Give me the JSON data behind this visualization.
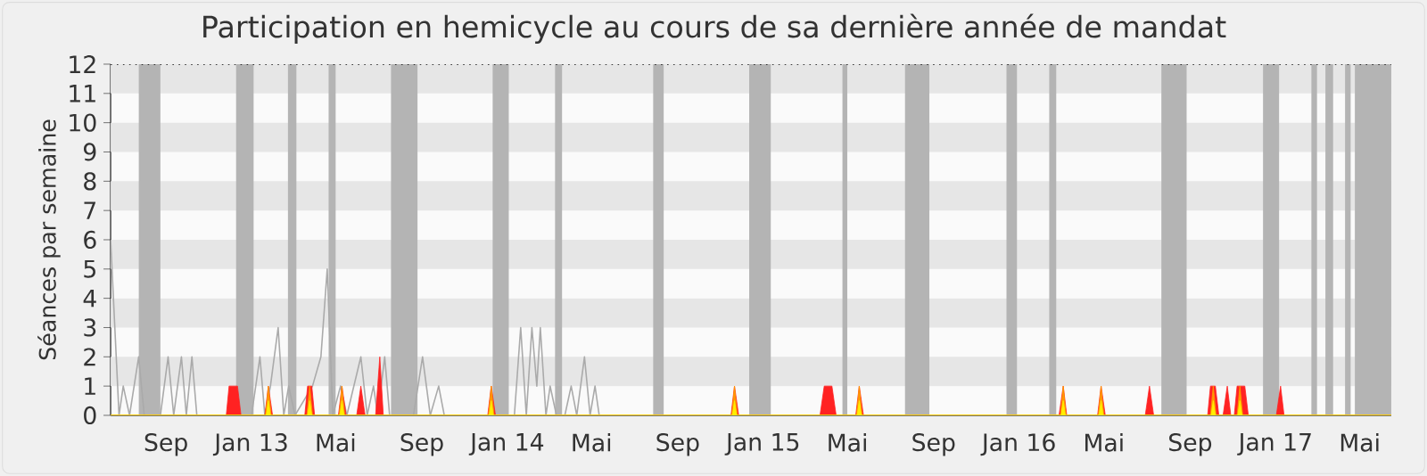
{
  "chart_data": {
    "type": "line",
    "title": "Participation en hemicycle au cours de sa dernière année de mandat",
    "ylabel": "Séances par semaine",
    "xlim": [
      "2012-06-14",
      "2017-06-15"
    ],
    "ylim": [
      0,
      12
    ],
    "xticks": [
      {
        "value": "2012-09-01",
        "label": "Sep"
      },
      {
        "value": "2013-01-01",
        "label": "Jan 13"
      },
      {
        "value": "2013-05-01",
        "label": "Mai"
      },
      {
        "value": "2013-09-01",
        "label": "Sep"
      },
      {
        "value": "2014-01-01",
        "label": "Jan 14"
      },
      {
        "value": "2014-05-01",
        "label": "Mai"
      },
      {
        "value": "2014-09-01",
        "label": "Sep"
      },
      {
        "value": "2015-01-01",
        "label": "Jan 15"
      },
      {
        "value": "2015-05-01",
        "label": "Mai"
      },
      {
        "value": "2015-09-01",
        "label": "Sep"
      },
      {
        "value": "2016-01-01",
        "label": "Jan 16"
      },
      {
        "value": "2016-05-01",
        "label": "Mai"
      },
      {
        "value": "2016-09-01",
        "label": "Sep"
      },
      {
        "value": "2017-01-01",
        "label": "Jan 17"
      },
      {
        "value": "2017-05-01",
        "label": "Mai"
      }
    ],
    "yticks": [
      0,
      1,
      2,
      3,
      4,
      5,
      6,
      7,
      8,
      9,
      10,
      11,
      12
    ],
    "bands": [
      {
        "axis": "y",
        "from": 1,
        "to": 2,
        "color": "#e6e6e6"
      },
      {
        "axis": "y",
        "from": 3,
        "to": 4,
        "color": "#e6e6e6"
      },
      {
        "axis": "y",
        "from": 5,
        "to": 6,
        "color": "#e6e6e6"
      },
      {
        "axis": "y",
        "from": 7,
        "to": 8,
        "color": "#e6e6e6"
      },
      {
        "axis": "y",
        "from": 9,
        "to": 10,
        "color": "#e6e6e6"
      },
      {
        "axis": "y",
        "from": 11,
        "to": 12,
        "color": "#e6e6e6"
      },
      {
        "axis": "x",
        "from": "2012-07-24",
        "to": "2012-08-24",
        "color": "#b4b4b4"
      },
      {
        "axis": "x",
        "from": "2012-12-10",
        "to": "2013-01-04",
        "color": "#b4b4b4"
      },
      {
        "axis": "x",
        "from": "2013-02-22",
        "to": "2013-03-06",
        "color": "#b4b4b4"
      },
      {
        "axis": "x",
        "from": "2013-04-21",
        "to": "2013-05-01",
        "color": "#b4b4b4"
      },
      {
        "axis": "x",
        "from": "2013-07-19",
        "to": "2013-08-26",
        "color": "#b4b4b4"
      },
      {
        "axis": "x",
        "from": "2013-12-11",
        "to": "2014-01-03",
        "color": "#b4b4b4"
      },
      {
        "axis": "x",
        "from": "2014-03-10",
        "to": "2014-03-20",
        "color": "#b4b4b4"
      },
      {
        "axis": "x",
        "from": "2014-07-28",
        "to": "2014-08-12",
        "color": "#b4b4b4"
      },
      {
        "axis": "x",
        "from": "2014-12-12",
        "to": "2015-01-12",
        "color": "#b4b4b4"
      },
      {
        "axis": "x",
        "from": "2015-04-24",
        "to": "2015-05-01",
        "color": "#b4b4b4"
      },
      {
        "axis": "x",
        "from": "2015-07-22",
        "to": "2015-08-26",
        "color": "#b4b4b4"
      },
      {
        "axis": "x",
        "from": "2015-12-14",
        "to": "2015-12-29",
        "color": "#b4b4b4"
      },
      {
        "axis": "x",
        "from": "2016-02-13",
        "to": "2016-02-23",
        "color": "#b4b4b4"
      },
      {
        "axis": "x",
        "from": "2016-07-22",
        "to": "2016-08-27",
        "color": "#b4b4b4"
      },
      {
        "axis": "x",
        "from": "2016-12-14",
        "to": "2017-01-06",
        "color": "#b4b4b4"
      },
      {
        "axis": "x",
        "from": "2017-02-21",
        "to": "2017-03-01",
        "color": "#b4b4b4"
      },
      {
        "axis": "x",
        "from": "2017-03-13",
        "to": "2017-03-24",
        "color": "#b4b4b4"
      },
      {
        "axis": "x",
        "from": "2017-04-10",
        "to": "2017-04-18",
        "color": "#b4b4b4"
      },
      {
        "axis": "x",
        "from": "2017-04-24",
        "to": "2017-06-15",
        "color": "#b4b4b4"
      }
    ],
    "ref_lines": [
      {
        "axis": "y",
        "value": 12,
        "color": "#000000",
        "line_style": "dotted"
      }
    ],
    "series": [
      {
        "color": "#aaaaaa",
        "x": [
          "2012-06-14",
          "2012-06-26",
          "2012-07-02",
          "2012-07-11",
          "2012-07-24",
          "2012-08-01",
          "2012-08-24",
          "2012-09-04",
          "2012-09-12",
          "2012-09-23",
          "2012-09-30",
          "2012-10-08",
          "2012-10-15",
          "2013-01-01",
          "2013-01-13",
          "2013-01-20",
          "2013-01-28",
          "2013-02-08",
          "2013-02-16",
          "2013-02-23",
          "2013-03-04",
          "2013-03-29",
          "2013-04-10",
          "2013-04-19",
          "2013-04-27",
          "2013-05-08",
          "2013-05-17",
          "2013-05-27",
          "2013-06-06",
          "2013-06-15",
          "2013-06-24",
          "2013-06-30",
          "2013-07-10",
          "2013-07-17",
          "2013-08-20",
          "2013-09-02",
          "2013-09-13",
          "2013-09-25",
          "2013-10-03",
          "2014-01-11",
          "2014-01-20",
          "2014-01-28",
          "2014-02-05",
          "2014-02-12",
          "2014-02-17",
          "2014-02-25",
          "2014-03-03",
          "2014-03-12",
          "2014-03-24",
          "2014-04-02",
          "2014-04-10",
          "2014-04-21",
          "2014-04-29",
          "2014-05-06",
          "2014-05-12",
          "2017-06-15"
        ],
        "values": [
          6,
          0,
          1,
          0,
          2,
          0,
          0,
          2,
          0,
          2,
          0,
          2,
          0,
          0,
          2,
          0,
          1,
          3,
          0,
          1,
          0,
          1,
          2,
          5,
          0,
          1,
          0,
          1,
          2,
          0,
          1,
          0,
          2,
          0,
          0,
          2,
          0,
          1,
          0,
          0,
          3,
          0,
          3,
          1,
          3,
          0,
          1,
          0,
          0,
          1,
          0,
          2,
          0,
          1,
          0,
          0
        ]
      },
      {
        "type": "area",
        "color": "#ff2222",
        "x": [
          "2012-06-14",
          "2012-11-26",
          "2012-11-30",
          "2012-12-12",
          "2012-12-17",
          "2013-01-20",
          "2013-01-25",
          "2013-01-31",
          "2013-03-18",
          "2013-03-22",
          "2013-03-28",
          "2013-04-01",
          "2013-05-05",
          "2013-05-10",
          "2013-05-16",
          "2013-05-31",
          "2013-06-06",
          "2013-06-12",
          "2013-06-27",
          "2013-07-03",
          "2013-07-08",
          "2013-12-04",
          "2013-12-09",
          "2013-12-15",
          "2014-11-16",
          "2014-11-21",
          "2014-11-27",
          "2015-03-23",
          "2015-03-29",
          "2015-04-09",
          "2015-04-15",
          "2015-05-13",
          "2015-05-18",
          "2015-05-24",
          "2016-02-27",
          "2016-03-04",
          "2016-03-09",
          "2016-04-22",
          "2016-04-27",
          "2016-05-03",
          "2016-06-29",
          "2016-07-05",
          "2016-07-11",
          "2016-09-26",
          "2016-09-30",
          "2016-10-07",
          "2016-10-12",
          "2016-10-18",
          "2016-10-24",
          "2016-10-29",
          "2016-11-03",
          "2016-11-07",
          "2016-11-18",
          "2016-11-23",
          "2017-01-02",
          "2017-01-08",
          "2017-01-13",
          "2017-06-15"
        ],
        "values": [
          0,
          0,
          1,
          1,
          0,
          0,
          1,
          0,
          0,
          1,
          1,
          0,
          0,
          1,
          0,
          0,
          1,
          0,
          0,
          2,
          0,
          0,
          1,
          0,
          0,
          1,
          0,
          0,
          1,
          1,
          0,
          0,
          1,
          0,
          0,
          1,
          0,
          0,
          1,
          0,
          0,
          1,
          0,
          0,
          1,
          1,
          0,
          0,
          1,
          0,
          0,
          1,
          1,
          0,
          0,
          1,
          0,
          0
        ]
      },
      {
        "type": "area",
        "color": "#ff9900",
        "x": [
          "2012-06-14",
          "2013-01-21",
          "2013-01-25",
          "2013-01-29",
          "2013-03-21",
          "2013-03-25",
          "2013-03-29",
          "2013-05-06",
          "2013-05-10",
          "2013-05-14",
          "2013-12-05",
          "2013-12-09",
          "2013-12-13",
          "2014-11-17",
          "2014-11-21",
          "2014-11-25",
          "2015-05-14",
          "2015-05-18",
          "2015-05-22",
          "2016-02-29",
          "2016-03-04",
          "2016-03-08",
          "2016-04-23",
          "2016-04-27",
          "2016-05-01",
          "2016-09-30",
          "2016-10-04",
          "2016-10-08",
          "2016-11-07",
          "2016-11-11",
          "2016-11-15",
          "2017-06-15"
        ],
        "values": [
          0,
          0,
          1,
          0,
          0,
          1,
          0,
          0,
          1,
          0,
          0,
          1,
          0,
          0,
          1,
          0,
          0,
          1,
          0,
          0,
          1,
          0,
          0,
          1,
          0,
          0,
          1,
          0,
          0,
          1,
          0,
          0
        ]
      },
      {
        "type": "area",
        "color": "#ffee00",
        "x": [
          "2012-06-14",
          "2013-01-22",
          "2013-01-25",
          "2013-01-28",
          "2013-03-22",
          "2013-03-25",
          "2013-03-28",
          "2013-05-07",
          "2013-05-10",
          "2013-05-13",
          "2013-12-06",
          "2013-12-09",
          "2013-12-12",
          "2014-11-18",
          "2014-11-21",
          "2014-11-24",
          "2015-05-15",
          "2015-05-18",
          "2015-05-21",
          "2016-03-01",
          "2016-03-04",
          "2016-03-07",
          "2016-04-24",
          "2016-04-27",
          "2016-04-30",
          "2016-10-01",
          "2016-10-04",
          "2016-10-07",
          "2016-11-08",
          "2016-11-11",
          "2016-11-14",
          "2017-06-15"
        ],
        "values": [
          0,
          0,
          0.5,
          0,
          0,
          0.5,
          0,
          0,
          0.5,
          0,
          0,
          0.5,
          0,
          0,
          0.5,
          0,
          0,
          0.5,
          0,
          0,
          0.5,
          0,
          0,
          0.5,
          0,
          0,
          0.5,
          0,
          0,
          0.5,
          0,
          0
        ]
      }
    ]
  }
}
